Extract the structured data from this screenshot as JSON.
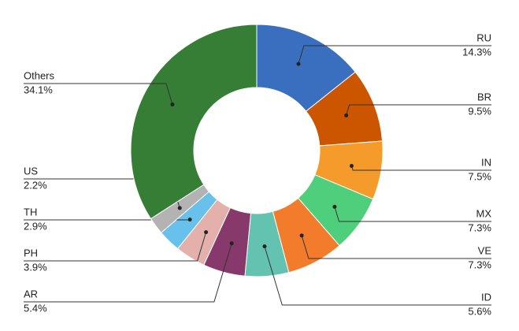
{
  "chart_data": {
    "type": "donut",
    "categories": [
      "RU",
      "BR",
      "IN",
      "MX",
      "VE",
      "ID",
      "AR",
      "PH",
      "TH",
      "US",
      "Others"
    ],
    "values": [
      14.3,
      9.5,
      7.5,
      7.3,
      7.3,
      5.6,
      5.4,
      3.9,
      2.9,
      2.2,
      34.1
    ],
    "value_labels": [
      "14.3%",
      "9.5%",
      "7.5%",
      "7.3%",
      "7.3%",
      "5.6%",
      "5.4%",
      "3.9%",
      "2.9%",
      "2.2%",
      "34.1%"
    ],
    "colors": [
      "#3a6fbf",
      "#cc5500",
      "#f59b2b",
      "#4fcf7b",
      "#f27b2c",
      "#63c2b0",
      "#86396a",
      "#e3b0ac",
      "#67c1ea",
      "#b3b3b3",
      "#367e36"
    ]
  }
}
